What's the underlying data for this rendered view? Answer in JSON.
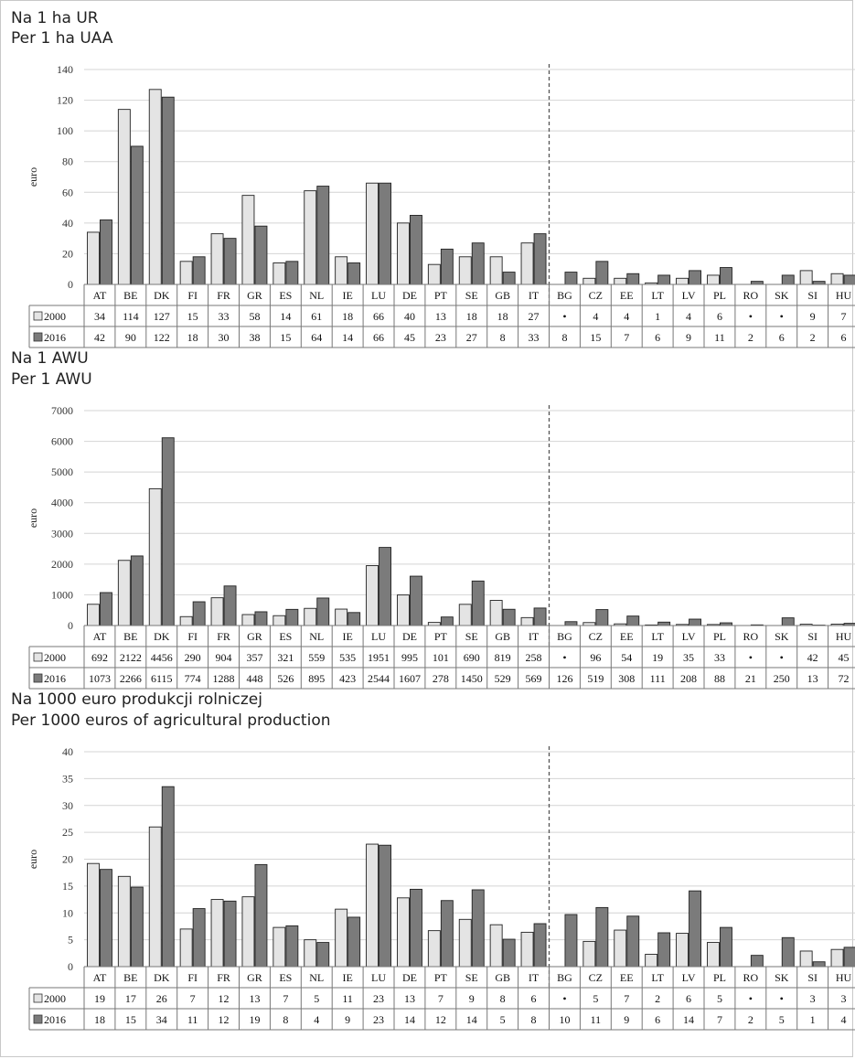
{
  "colors": {
    "series2000": "#e4e4e4",
    "series2016": "#7b7b7b",
    "grid": "#d4d4d4",
    "divider": "#555555"
  },
  "chart_data": [
    {
      "type": "bar",
      "title_pl": "Na 1 ha UR",
      "title_en": "Per 1 ha UAA",
      "ylabel": "euro",
      "ylim": [
        0,
        140
      ],
      "yticks": [
        "0",
        "20",
        "40",
        "60",
        "80",
        "100",
        "120",
        "140"
      ],
      "categories": [
        "AT",
        "BE",
        "DK",
        "FI",
        "FR",
        "GR",
        "ES",
        "NL",
        "IE",
        "LU",
        "DE",
        "PT",
        "SE",
        "GB",
        "IT",
        "BG",
        "CZ",
        "EE",
        "LT",
        "LV",
        "PL",
        "RO",
        "SK",
        "SI",
        "HU"
      ],
      "divider_after": "IT",
      "series": [
        {
          "name": "2000",
          "values": [
            34,
            114,
            127,
            15,
            33,
            58,
            14,
            61,
            18,
            66,
            40,
            13,
            18,
            18,
            27,
            null,
            4,
            4,
            1,
            4,
            6,
            null,
            null,
            9,
            7
          ],
          "labels": [
            "34",
            "114",
            "127",
            "15",
            "33",
            "58",
            "14",
            "61",
            "18",
            "66",
            "40",
            "13",
            "18",
            "18",
            "27",
            "•",
            "4",
            "4",
            "1",
            "4",
            "6",
            "•",
            "•",
            "9",
            "7"
          ]
        },
        {
          "name": "2016",
          "values": [
            42,
            90,
            122,
            18,
            30,
            38,
            15,
            64,
            14,
            66,
            45,
            23,
            27,
            8,
            33,
            8,
            15,
            7,
            6,
            9,
            11,
            2,
            6,
            2,
            6
          ],
          "labels": [
            "42",
            "90",
            "122",
            "18",
            "30",
            "38",
            "15",
            "64",
            "14",
            "66",
            "45",
            "23",
            "27",
            "8",
            "33",
            "8",
            "15",
            "7",
            "6",
            "9",
            "11",
            "2",
            "6",
            "2",
            "6"
          ]
        }
      ]
    },
    {
      "type": "bar",
      "title_pl": "Na 1 AWU",
      "title_en": "Per 1 AWU",
      "ylabel": "euro",
      "ylim": [
        0,
        7000
      ],
      "yticks": [
        "0",
        "1000",
        "2000",
        "3000",
        "4000",
        "5000",
        "6000",
        "7000"
      ],
      "categories": [
        "AT",
        "BE",
        "DK",
        "FI",
        "FR",
        "GR",
        "ES",
        "NL",
        "IE",
        "LU",
        "DE",
        "PT",
        "SE",
        "GB",
        "IT",
        "BG",
        "CZ",
        "EE",
        "LT",
        "LV",
        "PL",
        "RO",
        "SK",
        "SI",
        "HU"
      ],
      "divider_after": "IT",
      "series": [
        {
          "name": "2000",
          "values": [
            692,
            2122,
            4456,
            290,
            904,
            357,
            321,
            559,
            535,
            1951,
            995,
            101,
            690,
            819,
            258,
            null,
            96,
            54,
            19,
            35,
            33,
            null,
            null,
            42,
            45
          ],
          "labels": [
            "692",
            "2122",
            "4456",
            "290",
            "904",
            "357",
            "321",
            "559",
            "535",
            "1951",
            "995",
            "101",
            "690",
            "819",
            "258",
            "•",
            "96",
            "54",
            "19",
            "35",
            "33",
            "•",
            "•",
            "42",
            "45"
          ]
        },
        {
          "name": "2016",
          "values": [
            1073,
            2266,
            6115,
            774,
            1288,
            448,
            526,
            895,
            423,
            2544,
            1607,
            278,
            1450,
            529,
            569,
            126,
            519,
            308,
            111,
            208,
            88,
            21,
            250,
            13,
            72
          ],
          "labels": [
            "1073",
            "2266",
            "6115",
            "774",
            "1288",
            "448",
            "526",
            "895",
            "423",
            "2544",
            "1607",
            "278",
            "1450",
            "529",
            "569",
            "126",
            "519",
            "308",
            "111",
            "208",
            "88",
            "21",
            "250",
            "13",
            "72"
          ]
        }
      ]
    },
    {
      "type": "bar",
      "title_pl": "Na 1000 euro produkcji rolniczej",
      "title_en": "Per 1000 euros of agricultural production",
      "ylabel": "euro",
      "ylim": [
        0,
        40
      ],
      "yticks": [
        "0",
        "5",
        "10",
        "15",
        "20",
        "25",
        "30",
        "35",
        "40"
      ],
      "categories": [
        "AT",
        "BE",
        "DK",
        "FI",
        "FR",
        "GR",
        "ES",
        "NL",
        "IE",
        "LU",
        "DE",
        "PT",
        "SE",
        "GB",
        "IT",
        "BG",
        "CZ",
        "EE",
        "LT",
        "LV",
        "PL",
        "RO",
        "SK",
        "SI",
        "HU"
      ],
      "divider_after": "IT",
      "series": [
        {
          "name": "2000",
          "values": [
            19.2,
            16.8,
            26,
            7,
            12.5,
            13,
            7.3,
            5,
            10.7,
            22.8,
            12.8,
            6.7,
            8.8,
            7.8,
            6.4,
            null,
            4.7,
            6.8,
            2.3,
            6.2,
            4.5,
            null,
            null,
            2.9,
            3.2
          ],
          "labels": [
            "19",
            "17",
            "26",
            "7",
            "12",
            "13",
            "7",
            "5",
            "11",
            "23",
            "13",
            "7",
            "9",
            "8",
            "6",
            "•",
            "5",
            "7",
            "2",
            "6",
            "5",
            "•",
            "•",
            "3",
            "3"
          ]
        },
        {
          "name": "2016",
          "values": [
            18.1,
            14.8,
            33.5,
            10.8,
            12.2,
            19,
            7.6,
            4.5,
            9.2,
            22.6,
            14.4,
            12.3,
            14.3,
            5.1,
            8,
            9.7,
            11,
            9.4,
            6.3,
            14.1,
            7.3,
            2.1,
            5.4,
            0.9,
            3.6
          ],
          "labels": [
            "18",
            "15",
            "34",
            "11",
            "12",
            "19",
            "8",
            "4",
            "9",
            "23",
            "14",
            "12",
            "14",
            "5",
            "8",
            "10",
            "11",
            "9",
            "6",
            "14",
            "7",
            "2",
            "5",
            "1",
            "4"
          ]
        }
      ]
    }
  ]
}
